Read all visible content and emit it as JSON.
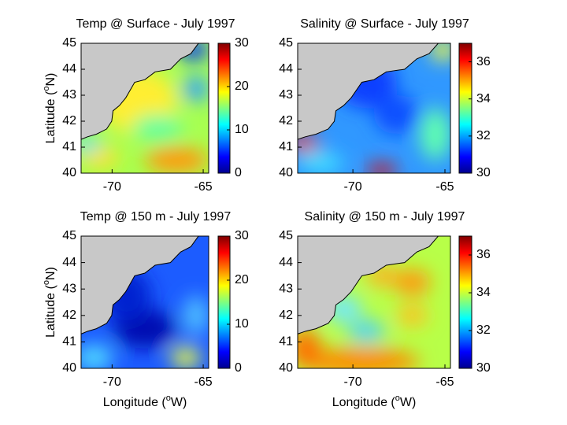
{
  "xlabel": [
    "Longitude (",
    "o",
    "W)"
  ],
  "ylabel": [
    "Latitude (",
    "o",
    "N)"
  ],
  "panels": [
    {
      "title": "Temp @ Surface - July 1997",
      "xlim": [
        -71.7,
        -64.7
      ],
      "ylim": [
        40,
        45
      ],
      "xticks": [
        -70,
        -65
      ],
      "yticks": [
        40,
        41,
        42,
        43,
        44,
        45
      ],
      "colorbar": {
        "lim": [
          0,
          30
        ],
        "ticks": [
          0,
          10,
          20,
          30
        ]
      }
    },
    {
      "title": "Salinity @ Surface - July 1997",
      "xlim": [
        -73,
        -64.7
      ],
      "ylim": [
        40,
        45
      ],
      "xticks": [
        -70,
        -65
      ],
      "yticks": [
        40,
        41,
        42,
        43,
        44,
        45
      ],
      "colorbar": {
        "lim": [
          30,
          37
        ],
        "ticks": [
          30,
          32,
          34,
          36
        ]
      }
    },
    {
      "title": "Temp @ 150 m - July 1997",
      "xlim": [
        -71.7,
        -64.7
      ],
      "ylim": [
        40,
        45
      ],
      "xticks": [
        -70,
        -65
      ],
      "yticks": [
        40,
        41,
        42,
        43,
        44,
        45
      ],
      "colorbar": {
        "lim": [
          0,
          30
        ],
        "ticks": [
          0,
          10,
          20,
          30
        ]
      }
    },
    {
      "title": "Salinity @ 150 m - July 1997",
      "xlim": [
        -73,
        -64.7
      ],
      "ylim": [
        40,
        45
      ],
      "xticks": [
        -70,
        -65
      ],
      "yticks": [
        40,
        41,
        42,
        43,
        44,
        45
      ],
      "colorbar": {
        "lim": [
          30,
          37
        ],
        "ticks": [
          30,
          32,
          34,
          36
        ]
      }
    }
  ]
}
